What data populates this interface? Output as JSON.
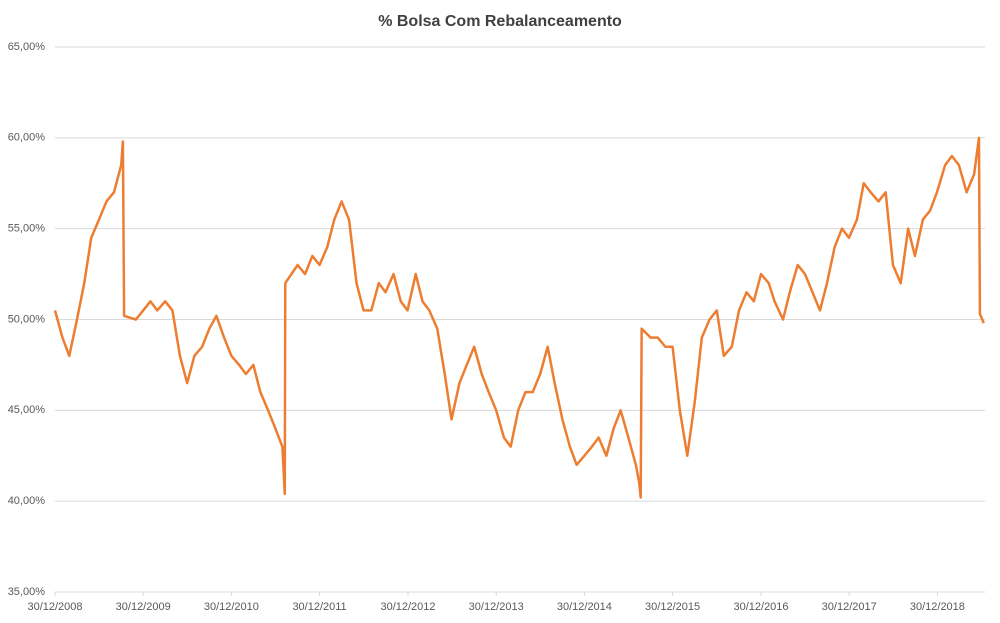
{
  "chart_data": {
    "type": "line",
    "title": "% Bolsa Com Rebalanceamento",
    "color": "#ed7d31",
    "grid": true,
    "x": [
      "2008-12-30",
      "2009-01-30",
      "2009-02-27",
      "2009-03-31",
      "2009-04-30",
      "2009-05-29",
      "2009-06-30",
      "2009-07-31",
      "2009-08-31",
      "2009-09-30",
      "2009-10-07",
      "2009-10-12",
      "2009-11-30",
      "2009-12-30",
      "2010-01-29",
      "2010-02-26",
      "2010-03-31",
      "2010-04-30",
      "2010-05-31",
      "2010-06-30",
      "2010-07-30",
      "2010-08-31",
      "2010-09-30",
      "2010-10-29",
      "2010-11-30",
      "2010-12-30",
      "2011-01-31",
      "2011-02-28",
      "2011-03-31",
      "2011-04-29",
      "2011-05-31",
      "2011-06-30",
      "2011-07-29",
      "2011-08-08",
      "2011-08-10",
      "2011-09-30",
      "2011-10-31",
      "2011-11-30",
      "2011-12-30",
      "2012-01-31",
      "2012-02-29",
      "2012-03-30",
      "2012-04-30",
      "2012-05-31",
      "2012-06-29",
      "2012-07-31",
      "2012-08-31",
      "2012-09-28",
      "2012-10-31",
      "2012-11-30",
      "2012-12-28",
      "2013-01-31",
      "2013-02-28",
      "2013-03-28",
      "2013-04-30",
      "2013-05-31",
      "2013-06-28",
      "2013-07-31",
      "2013-08-30",
      "2013-09-30",
      "2013-10-31",
      "2013-11-29",
      "2013-12-30",
      "2014-01-31",
      "2014-02-28",
      "2014-03-31",
      "2014-04-30",
      "2014-05-30",
      "2014-06-30",
      "2014-07-31",
      "2014-08-29",
      "2014-09-30",
      "2014-10-31",
      "2014-11-28",
      "2014-12-30",
      "2015-01-30",
      "2015-02-27",
      "2015-03-31",
      "2015-04-30",
      "2015-05-29",
      "2015-06-30",
      "2015-07-31",
      "2015-08-14",
      "2015-08-20",
      "2015-08-24",
      "2015-09-30",
      "2015-10-30",
      "2015-11-30",
      "2015-12-30",
      "2016-01-29",
      "2016-02-29",
      "2016-03-31",
      "2016-04-29",
      "2016-05-31",
      "2016-06-30",
      "2016-07-29",
      "2016-08-31",
      "2016-09-30",
      "2016-10-31",
      "2016-11-30",
      "2016-12-30",
      "2017-01-31",
      "2017-02-24",
      "2017-03-31",
      "2017-04-28",
      "2017-05-31",
      "2017-06-30",
      "2017-07-31",
      "2017-08-31",
      "2017-09-29",
      "2017-10-31",
      "2017-11-30",
      "2017-12-29",
      "2018-01-31",
      "2018-02-28",
      "2018-03-29",
      "2018-04-30",
      "2018-05-30",
      "2018-06-29",
      "2018-07-31",
      "2018-08-31",
      "2018-09-28",
      "2018-10-31",
      "2018-11-30",
      "2018-12-28",
      "2019-01-31",
      "2019-02-28",
      "2019-03-29",
      "2019-04-30",
      "2019-05-31",
      "2019-06-20",
      "2019-06-24",
      "2019-07-10"
    ],
    "values": [
      50.5,
      49,
      48,
      50,
      52,
      54.5,
      55.5,
      56.5,
      57,
      58.5,
      59.8,
      50.2,
      50,
      50.5,
      51,
      50.5,
      51,
      50.5,
      48,
      46.5,
      48,
      48.5,
      49.5,
      50.2,
      49,
      48,
      47.5,
      47,
      47.5,
      46,
      45,
      44,
      43,
      40.4,
      52,
      53,
      52.5,
      53.5,
      53,
      54,
      55.5,
      56.5,
      55.5,
      52,
      50.5,
      50.5,
      52,
      51.5,
      52.5,
      51,
      50.5,
      52.5,
      51,
      50.5,
      49.5,
      47,
      44.5,
      46.5,
      47.5,
      48.5,
      47,
      46,
      45,
      43.5,
      43,
      45,
      46,
      46,
      47,
      48.5,
      46.5,
      44.5,
      43,
      42,
      42.5,
      43,
      43.5,
      42.5,
      44,
      45,
      43.5,
      42,
      41,
      40.2,
      49.5,
      49,
      49,
      48.5,
      48.5,
      45,
      42.5,
      45.5,
      49,
      50,
      50.5,
      48,
      48.5,
      50.5,
      51.5,
      51,
      52.5,
      52,
      51,
      50,
      51.5,
      53,
      52.5,
      51.5,
      50.5,
      52,
      54,
      55,
      54.5,
      55.5,
      57.5,
      57,
      56.5,
      57,
      53,
      52,
      55,
      53.5,
      55.5,
      56,
      57,
      58.5,
      59,
      58.5,
      57,
      58,
      60,
      50.3,
      49.8
    ],
    "xlim": [
      "2008-12-30",
      "2019-07-15"
    ],
    "xticks": [
      {
        "value": "2008-12-30",
        "label": "30/12/2008"
      },
      {
        "value": "2009-12-30",
        "label": "30/12/2009"
      },
      {
        "value": "2010-12-30",
        "label": "30/12/2010"
      },
      {
        "value": "2011-12-30",
        "label": "30/12/2011"
      },
      {
        "value": "2012-12-30",
        "label": "30/12/2012"
      },
      {
        "value": "2013-12-30",
        "label": "30/12/2013"
      },
      {
        "value": "2014-12-30",
        "label": "30/12/2014"
      },
      {
        "value": "2015-12-30",
        "label": "30/12/2015"
      },
      {
        "value": "2016-12-30",
        "label": "30/12/2016"
      },
      {
        "value": "2017-12-30",
        "label": "30/12/2017"
      },
      {
        "value": "2018-12-30",
        "label": "30/12/2018"
      }
    ],
    "ylim": [
      35,
      65
    ],
    "yticks": [
      {
        "value": 35,
        "label": "35,00%"
      },
      {
        "value": 40,
        "label": "40,00%"
      },
      {
        "value": 45,
        "label": "45,00%"
      },
      {
        "value": 50,
        "label": "50,00%"
      },
      {
        "value": 55,
        "label": "55,00%"
      },
      {
        "value": 60,
        "label": "60,00%"
      },
      {
        "value": 65,
        "label": "65,00%"
      }
    ]
  }
}
